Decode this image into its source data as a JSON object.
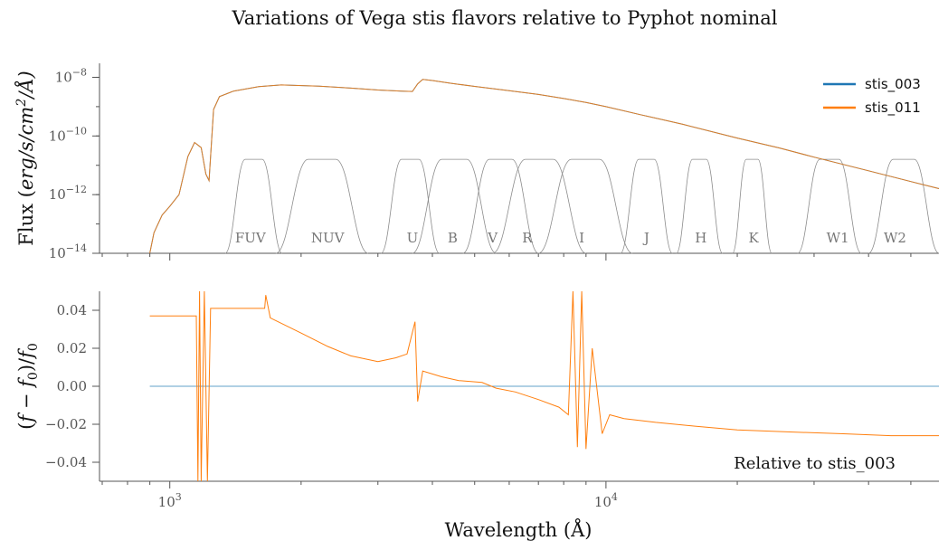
{
  "chart_data": [
    {
      "type": "line",
      "panel": "top",
      "title": "Variations of Vega stis flavors relative to Pyphot nominal",
      "ylabel_html": "Flux (erg/s/cm²/Å)",
      "ylabel_parts": {
        "pre": "Flux (",
        "var": "erg/s/cm",
        "sup": "2",
        "post": "/Å)"
      },
      "yscale": "log",
      "xscale": "log",
      "xlim": [
        690,
        58000
      ],
      "ylim": [
        1e-14,
        3e-08
      ],
      "yticks": [
        {
          "value": 1e-08,
          "base": "10",
          "exp": "−8"
        },
        {
          "value": 1e-10,
          "base": "10",
          "exp": "−10"
        },
        {
          "value": 1e-12,
          "base": "10",
          "exp": "−12"
        },
        {
          "value": 1e-14,
          "base": "10",
          "exp": "−14"
        }
      ],
      "legend": {
        "placement": "top-right",
        "entries": [
          {
            "name": "stis_003",
            "color": "#1f77b4"
          },
          {
            "name": "stis_011",
            "color": "#ff7f0e"
          }
        ]
      },
      "series": [
        {
          "name": "stis_003",
          "color": "#1f77b4",
          "points": [
            [
              900,
              1e-14
            ],
            [
              920,
              5e-14
            ],
            [
              960,
              2e-13
            ],
            [
              1000,
              4e-13
            ],
            [
              1050,
              1e-12
            ],
            [
              1100,
              2e-11
            ],
            [
              1140,
              6e-11
            ],
            [
              1180,
              4e-11
            ],
            [
              1210,
              5e-12
            ],
            [
              1230,
              3e-12
            ],
            [
              1260,
              8e-10
            ],
            [
              1300,
              2.2e-09
            ],
            [
              1400,
              3.4e-09
            ],
            [
              1600,
              4.8e-09
            ],
            [
              1800,
              5.5e-09
            ],
            [
              2200,
              5e-09
            ],
            [
              2600,
              4.3e-09
            ],
            [
              3000,
              3.7e-09
            ],
            [
              3400,
              3.4e-09
            ],
            [
              3600,
              3.3e-09
            ],
            [
              3700,
              6e-09
            ],
            [
              3800,
              8.5e-09
            ],
            [
              4000,
              7.8e-09
            ],
            [
              4400,
              6.3e-09
            ],
            [
              5000,
              4.9e-09
            ],
            [
              6000,
              3.5e-09
            ],
            [
              7000,
              2.6e-09
            ],
            [
              8000,
              1.9e-09
            ],
            [
              9000,
              1.4e-09
            ],
            [
              10000,
              1e-09
            ],
            [
              12000,
              5.3e-10
            ],
            [
              15000,
              2.5e-10
            ],
            [
              20000,
              8.5e-11
            ],
            [
              25000,
              3.9e-11
            ],
            [
              30000,
              1.9e-11
            ],
            [
              40000,
              6.5e-12
            ],
            [
              50000,
              2.8e-12
            ],
            [
              58000,
              1.6e-12
            ]
          ]
        },
        {
          "name": "stis_011",
          "color": "#ff7f0e",
          "points": [
            [
              900,
              1e-14
            ],
            [
              920,
              5e-14
            ],
            [
              960,
              2e-13
            ],
            [
              1000,
              4e-13
            ],
            [
              1050,
              1e-12
            ],
            [
              1100,
              2e-11
            ],
            [
              1140,
              6e-11
            ],
            [
              1180,
              4e-11
            ],
            [
              1210,
              5e-12
            ],
            [
              1230,
              3e-12
            ],
            [
              1260,
              8e-10
            ],
            [
              1300,
              2.2e-09
            ],
            [
              1400,
              3.4e-09
            ],
            [
              1600,
              4.8e-09
            ],
            [
              1800,
              5.5e-09
            ],
            [
              2200,
              5e-09
            ],
            [
              2600,
              4.3e-09
            ],
            [
              3000,
              3.7e-09
            ],
            [
              3400,
              3.4e-09
            ],
            [
              3600,
              3.3e-09
            ],
            [
              3700,
              6e-09
            ],
            [
              3800,
              8.5e-09
            ],
            [
              4000,
              7.8e-09
            ],
            [
              4400,
              6.3e-09
            ],
            [
              5000,
              4.9e-09
            ],
            [
              6000,
              3.5e-09
            ],
            [
              7000,
              2.6e-09
            ],
            [
              8000,
              1.9e-09
            ],
            [
              9000,
              1.4e-09
            ],
            [
              10000,
              1e-09
            ],
            [
              12000,
              5.3e-10
            ],
            [
              15000,
              2.5e-10
            ],
            [
              20000,
              8.5e-11
            ],
            [
              25000,
              3.9e-11
            ],
            [
              30000,
              1.9e-11
            ],
            [
              40000,
              6.5e-12
            ],
            [
              50000,
              2.8e-12
            ],
            [
              58000,
              1.6e-12
            ]
          ]
        }
      ],
      "bands": [
        {
          "name": "FUV",
          "start": 1340,
          "end": 1810,
          "center": 1530
        },
        {
          "name": "NUV",
          "start": 1750,
          "end": 2850,
          "center": 2300
        },
        {
          "name": "U",
          "start": 3050,
          "end": 4150,
          "center": 3600
        },
        {
          "name": "B",
          "start": 3600,
          "end": 5600,
          "center": 4450
        },
        {
          "name": "V",
          "start": 4700,
          "end": 7000,
          "center": 5500
        },
        {
          "name": "R",
          "start": 5500,
          "end": 9000,
          "center": 6600
        },
        {
          "name": "I",
          "start": 7000,
          "end": 11500,
          "center": 8800
        },
        {
          "name": "J",
          "start": 10800,
          "end": 14200,
          "center": 12400
        },
        {
          "name": "H",
          "start": 14500,
          "end": 18500,
          "center": 16500
        },
        {
          "name": "K",
          "start": 19500,
          "end": 24000,
          "center": 21800
        },
        {
          "name": "W1",
          "start": 27500,
          "end": 38500,
          "center": 34000
        },
        {
          "name": "W2",
          "start": 40000,
          "end": 58000,
          "center": 46000
        }
      ]
    },
    {
      "type": "line",
      "panel": "bottom",
      "ylabel_parts": {
        "pre": "(",
        "var": "f",
        "mid": " − ",
        "var2": "f",
        "sub": "0",
        "close": ")/",
        "var3": "f",
        "sub2": "0"
      },
      "xlabel": "Wavelength (Å)",
      "xscale": "log",
      "xlim": [
        690,
        58000
      ],
      "ylim": [
        -0.05,
        0.05
      ],
      "yticks": [
        {
          "value": 0.04,
          "label": "0.04"
        },
        {
          "value": 0.02,
          "label": "0.02"
        },
        {
          "value": 0.0,
          "label": "0.00"
        },
        {
          "value": -0.02,
          "label": "−0.02"
        },
        {
          "value": -0.04,
          "label": "−0.04"
        }
      ],
      "xticks": [
        {
          "value": 1000,
          "base": "10",
          "exp": "3"
        },
        {
          "value": 10000,
          "base": "10",
          "exp": "4"
        }
      ],
      "annotation": "Relative to stis_003",
      "series": [
        {
          "name": "stis_003",
          "color": "#1f77b4",
          "points": [
            [
              900,
              0
            ],
            [
              58000,
              0
            ]
          ]
        },
        {
          "name": "stis_011",
          "color": "#ff7f0e",
          "points": [
            [
              900,
              0.037
            ],
            [
              1150,
              0.037
            ],
            [
              1160,
              -0.05
            ],
            [
              1170,
              0.05
            ],
            [
              1180,
              -0.05
            ],
            [
              1200,
              0.05
            ],
            [
              1220,
              -0.05
            ],
            [
              1240,
              0.041
            ],
            [
              1650,
              0.041
            ],
            [
              1660,
              0.048
            ],
            [
              1700,
              0.036
            ],
            [
              2000,
              0.028
            ],
            [
              2300,
              0.021
            ],
            [
              2600,
              0.016
            ],
            [
              3000,
              0.013
            ],
            [
              3300,
              0.015
            ],
            [
              3500,
              0.017
            ],
            [
              3650,
              0.034
            ],
            [
              3700,
              -0.008
            ],
            [
              3800,
              0.008
            ],
            [
              4200,
              0.005
            ],
            [
              4600,
              0.003
            ],
            [
              5200,
              0.002
            ],
            [
              5600,
              -0.001
            ],
            [
              6200,
              -0.003
            ],
            [
              7000,
              -0.007
            ],
            [
              7800,
              -0.011
            ],
            [
              8200,
              -0.015
            ],
            [
              8400,
              0.05
            ],
            [
              8600,
              -0.032
            ],
            [
              8800,
              0.05
            ],
            [
              9000,
              -0.033
            ],
            [
              9300,
              0.02
            ],
            [
              9800,
              -0.025
            ],
            [
              10200,
              -0.015
            ],
            [
              11000,
              -0.017
            ],
            [
              13000,
              -0.019
            ],
            [
              16000,
              -0.021
            ],
            [
              20000,
              -0.023
            ],
            [
              26000,
              -0.024
            ],
            [
              35000,
              -0.025
            ],
            [
              45000,
              -0.026
            ],
            [
              58000,
              -0.026
            ]
          ]
        }
      ]
    }
  ]
}
